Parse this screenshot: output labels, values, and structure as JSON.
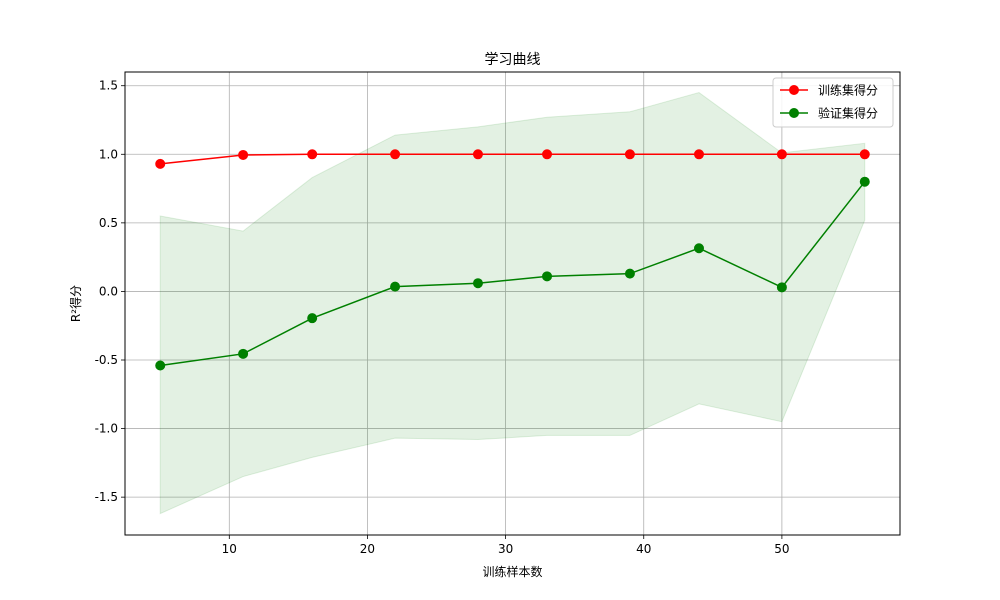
{
  "chart_data": {
    "type": "line",
    "title": "学习曲线",
    "xlabel": "训练样本数",
    "ylabel": "R²得分",
    "xlim": [
      2.45,
      58.55
    ],
    "ylim": [
      -1.776,
      1.6
    ],
    "xticks": [
      10,
      20,
      30,
      40,
      50
    ],
    "yticks": [
      -1.5,
      -1.0,
      -0.5,
      0.0,
      0.5,
      1.0,
      1.5
    ],
    "ytick_labels": [
      "-1.5",
      "-1.0",
      "-0.5",
      "0.0",
      "0.5",
      "1.0",
      "1.5"
    ],
    "grid": true,
    "legend_position": "top-right",
    "x": [
      5,
      11,
      16,
      22,
      28,
      33,
      39,
      44,
      50,
      56
    ],
    "series": [
      {
        "name": "训练集得分",
        "color": "#ff0000",
        "marker": "circle",
        "values": [
          0.93,
          0.995,
          1.0,
          1.0,
          1.0,
          1.0,
          1.0,
          1.0,
          1.0,
          1.0
        ]
      },
      {
        "name": "验证集得分",
        "color": "#008000",
        "marker": "circle",
        "values": [
          -0.54,
          -0.455,
          -0.195,
          0.035,
          0.06,
          0.11,
          0.13,
          0.315,
          0.03,
          0.8
        ],
        "band_upper": [
          0.55,
          0.44,
          0.83,
          1.14,
          1.2,
          1.27,
          1.31,
          1.45,
          1.01,
          1.08
        ],
        "band_lower": [
          -1.62,
          -1.35,
          -1.21,
          -1.07,
          -1.08,
          -1.05,
          -1.05,
          -0.82,
          -0.95,
          0.52
        ],
        "band_color": "#008000"
      }
    ]
  }
}
